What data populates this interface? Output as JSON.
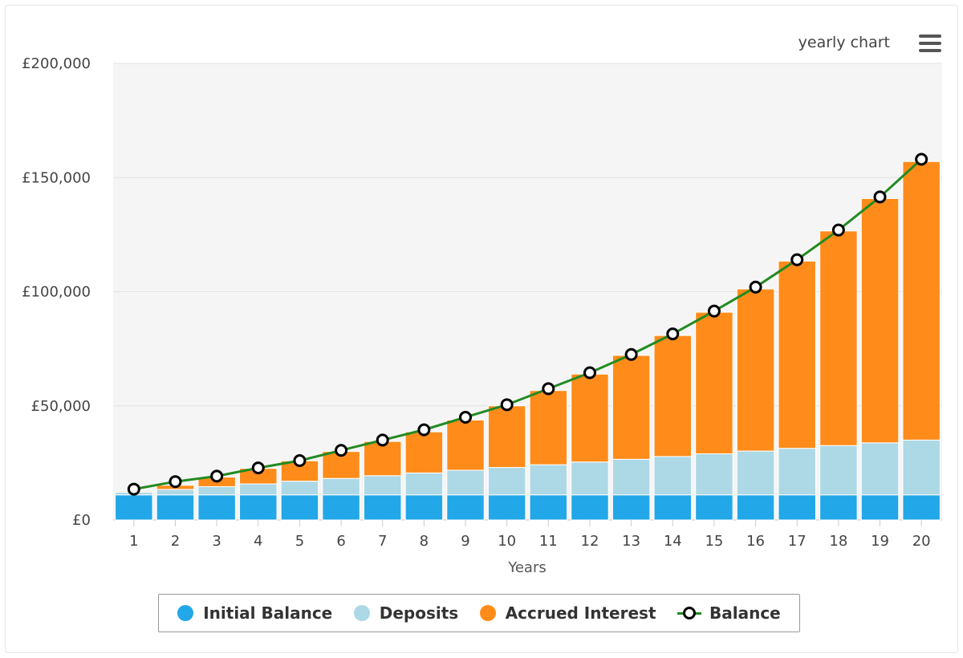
{
  "header": {
    "title": "yearly chart",
    "menu_icon": "hamburger-menu-icon"
  },
  "colors": {
    "initial_balance": "#22a7e8",
    "deposits": "#add8e6",
    "accrued_interest": "#ff8c1a",
    "balance_line": "#228b22",
    "plot_background": "#f5f5f5"
  },
  "chart_data": {
    "type": "bar",
    "stacked": true,
    "title": "yearly chart",
    "xlabel": "Years",
    "ylabel": "",
    "ylim": [
      0,
      200000
    ],
    "yticks": [
      "£0",
      "£50,000",
      "£100,000",
      "£150,000",
      "£200,000"
    ],
    "ytick_values": [
      0,
      50000,
      100000,
      150000,
      200000
    ],
    "categories": [
      "1",
      "2",
      "3",
      "4",
      "5",
      "6",
      "7",
      "8",
      "9",
      "10",
      "11",
      "12",
      "13",
      "14",
      "15",
      "16",
      "17",
      "18",
      "19",
      "20"
    ],
    "series": [
      {
        "name": "Initial Balance",
        "type": "bar",
        "values": [
          11000,
          11000,
          11000,
          11000,
          11000,
          11000,
          11000,
          11000,
          11000,
          11000,
          11000,
          11000,
          11000,
          11000,
          11000,
          11000,
          11000,
          11000,
          11000,
          11000
        ]
      },
      {
        "name": "Deposits",
        "type": "bar",
        "values": [
          1200,
          2400,
          3600,
          4800,
          6000,
          7200,
          8400,
          9600,
          10800,
          12000,
          13200,
          14400,
          15600,
          16800,
          18000,
          19200,
          20400,
          21600,
          22800,
          24000
        ]
      },
      {
        "name": "Accrued Interest",
        "type": "bar",
        "values": [
          400,
          1800,
          4200,
          6800,
          8900,
          11800,
          15000,
          18000,
          22000,
          27000,
          32500,
          38500,
          45500,
          53000,
          62000,
          71000,
          82000,
          94000,
          107000,
          122000
        ]
      },
      {
        "name": "Balance",
        "type": "line",
        "values": [
          13500,
          16800,
          19200,
          22800,
          26000,
          30500,
          35000,
          39500,
          45000,
          50500,
          57500,
          64500,
          72500,
          81500,
          91500,
          102000,
          114000,
          127000,
          141500,
          158000
        ]
      }
    ],
    "legend": "bottom-center",
    "grid": true
  }
}
